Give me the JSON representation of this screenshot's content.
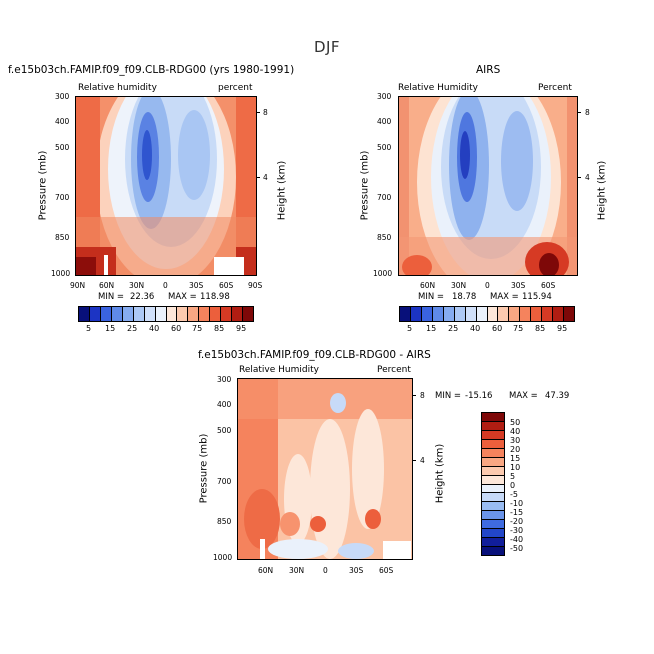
{
  "page": {
    "season": "DJF"
  },
  "panels": [
    {
      "title": "f.e15b03ch.FAMIP.f09_f09.CLB-RDG00 (yrs 1980-1991)",
      "left_label": "Relative humidity",
      "right_label": "percent",
      "x_ticks": [
        "90N",
        "60N",
        "30N",
        "0",
        "30S",
        "60S",
        "90S"
      ],
      "y_ticks": [
        "300",
        "400",
        "500",
        "700",
        "850",
        "1000"
      ],
      "y_label": "Pressure (mb)",
      "y2_ticks": [
        "8",
        "4"
      ],
      "y2_label": "Height (km)",
      "min_label": "MIN =",
      "min_value": "22.36",
      "max_label": "MAX =",
      "max_value": "118.98"
    },
    {
      "title": "AIRS",
      "left_label": "Relative Humidity",
      "right_label": "Percent",
      "x_ticks": [
        "60N",
        "30N",
        "0",
        "30S",
        "60S"
      ],
      "y_ticks": [
        "300",
        "400",
        "500",
        "700",
        "850",
        "1000"
      ],
      "y_label": "Pressure (mb)",
      "y2_ticks": [
        "8",
        "4"
      ],
      "y2_label": "Height (km)",
      "min_label": "MIN =",
      "min_value": "18.78",
      "max_label": "MAX =",
      "max_value": "115.94"
    },
    {
      "title": "f.e15b03ch.FAMIP.f09_f09.CLB-RDG00 - AIRS",
      "left_label": "Relative Humidity",
      "right_label": "Percent",
      "x_ticks": [
        "60N",
        "30N",
        "0",
        "30S",
        "60S"
      ],
      "y_ticks": [
        "300",
        "400",
        "500",
        "700",
        "850",
        "1000"
      ],
      "y_label": "Pressure (mb)",
      "y2_ticks": [
        "8",
        "4"
      ],
      "y2_label": "Height (km)",
      "min_label": "MIN =",
      "min_value": "-15.16",
      "max_label": "MAX =",
      "max_value": "47.39"
    }
  ],
  "colorbar_rh": {
    "labels": [
      "5",
      "15",
      "25",
      "40",
      "60",
      "75",
      "85",
      "95"
    ],
    "colors": [
      "#08107a",
      "#1c34c4",
      "#3a63e0",
      "#5f8ae8",
      "#86acf0",
      "#adc9f5",
      "#d0e0fa",
      "#eaf1fb",
      "#fde7d9",
      "#fccaaf",
      "#f9a783",
      "#f5835d",
      "#ec5f3c",
      "#d63a24",
      "#b01d12",
      "#7e0808"
    ]
  },
  "colorbar_diff": {
    "labels": [
      "50",
      "40",
      "30",
      "20",
      "15",
      "10",
      "5",
      "0",
      "-5",
      "-10",
      "-15",
      "-20",
      "-30",
      "-40",
      "-50"
    ],
    "colors": [
      "#7e0808",
      "#b01d12",
      "#d63a24",
      "#ec5f3c",
      "#f5835d",
      "#f9a783",
      "#fccaaf",
      "#fde7d9",
      "#eaf1fb",
      "#c7daf8",
      "#99bcf2",
      "#6a94ea",
      "#3f6be0",
      "#2246c8",
      "#111e9a",
      "#08107a"
    ]
  },
  "chart_data": [
    {
      "type": "heatmap",
      "title": "f.e15b03ch.FAMIP.f09_f09.CLB-RDG00 (yrs 1980-1991)",
      "x": [
        "90N",
        "60N",
        "30N",
        "0",
        "30S",
        "60S",
        "90S"
      ],
      "y": [
        300,
        400,
        500,
        700,
        850,
        1000
      ],
      "xlabel": "",
      "ylabel": "Pressure (mb)",
      "values": [
        [
          70,
          60,
          32,
          20,
          35,
          62,
          74
        ],
        [
          72,
          55,
          28,
          20,
          33,
          58,
          76
        ],
        [
          74,
          52,
          26,
          20,
          32,
          56,
          78
        ],
        [
          78,
          54,
          28,
          24,
          36,
          58,
          80
        ],
        [
          84,
          62,
          42,
          38,
          46,
          68,
          86
        ],
        [
          96,
          78,
          62,
          56,
          64,
          82,
          98
        ]
      ],
      "min": 22.36,
      "max": 118.98
    },
    {
      "type": "heatmap",
      "title": "AIRS",
      "x": [
        "60N",
        "30N",
        "0",
        "30S",
        "60S"
      ],
      "y": [
        300,
        400,
        500,
        700,
        850,
        1000
      ],
      "xlabel": "",
      "ylabel": "Pressure (mb)",
      "values": [
        [
          50,
          28,
          20,
          28,
          48
        ],
        [
          52,
          26,
          20,
          26,
          50
        ],
        [
          56,
          24,
          22,
          28,
          52
        ],
        [
          62,
          34,
          30,
          38,
          60
        ],
        [
          70,
          48,
          44,
          52,
          74
        ],
        [
          82,
          64,
          60,
          68,
          92
        ]
      ],
      "min": 18.78,
      "max": 115.94
    },
    {
      "type": "heatmap",
      "title": "f.e15b03ch.FAMIP.f09_f09.CLB-RDG00 - AIRS",
      "x": [
        "60N",
        "30N",
        "0",
        "30S",
        "60S"
      ],
      "y": [
        300,
        400,
        500,
        700,
        850,
        1000
      ],
      "xlabel": "",
      "ylabel": "Pressure (mb)",
      "values": [
        [
          25,
          12,
          8,
          10,
          20
        ],
        [
          22,
          10,
          5,
          8,
          18
        ],
        [
          18,
          8,
          5,
          10,
          16
        ],
        [
          14,
          6,
          4,
          8,
          12
        ],
        [
          12,
          6,
          8,
          10,
          14
        ],
        [
          4,
          -5,
          -2,
          2,
          6
        ]
      ],
      "min": -15.16,
      "max": 47.39
    }
  ]
}
